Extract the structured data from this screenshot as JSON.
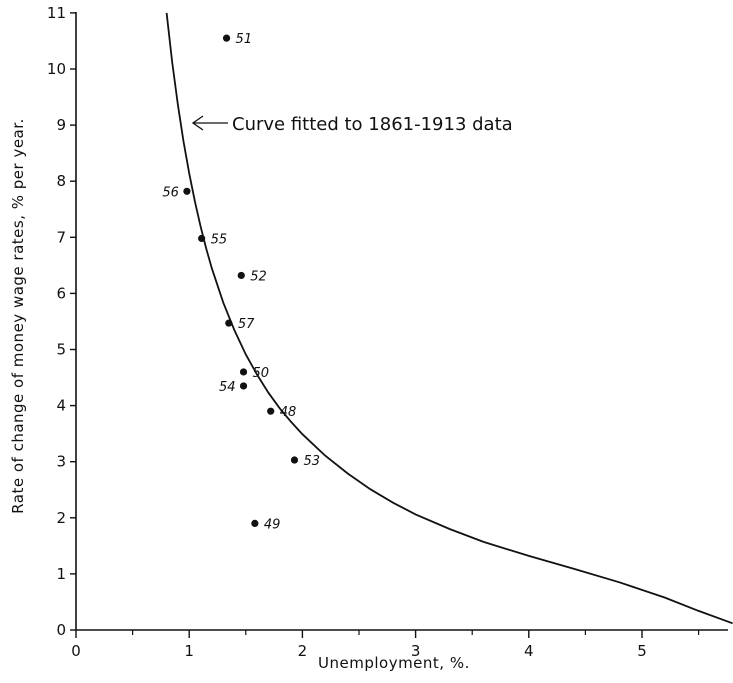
{
  "chart_data": {
    "type": "scatter",
    "xlabel": "Unemployment,  %.",
    "ylabel": "Rate of change of money wage rates, % per year.",
    "xlim": [
      0,
      5.8
    ],
    "ylim": [
      0,
      11
    ],
    "x_ticks": [
      "0",
      "1",
      "2",
      "3",
      "4",
      "5"
    ],
    "y_ticks": [
      "0",
      "1",
      "2",
      "3",
      "4",
      "5",
      "6",
      "7",
      "8",
      "9",
      "10",
      "11"
    ],
    "grid": false,
    "points": [
      {
        "label": "48",
        "x": 1.72,
        "y": 3.9
      },
      {
        "label": "49",
        "x": 1.58,
        "y": 1.9
      },
      {
        "label": "50",
        "x": 1.48,
        "y": 4.6
      },
      {
        "label": "51",
        "x": 1.33,
        "y": 10.55
      },
      {
        "label": "52",
        "x": 1.46,
        "y": 6.32
      },
      {
        "label": "53",
        "x": 1.93,
        "y": 3.03
      },
      {
        "label": "54",
        "x": 1.48,
        "y": 4.35
      },
      {
        "label": "55",
        "x": 1.11,
        "y": 6.98
      },
      {
        "label": "56",
        "x": 0.98,
        "y": 7.82
      },
      {
        "label": "57",
        "x": 1.35,
        "y": 5.47
      }
    ],
    "curve": {
      "x": [
        0.8,
        0.85,
        0.9,
        0.95,
        1.0,
        1.05,
        1.1,
        1.15,
        1.2,
        1.3,
        1.4,
        1.5,
        1.6,
        1.7,
        1.8,
        1.9,
        2.0,
        2.2,
        2.4,
        2.6,
        2.8,
        3.0,
        3.3,
        3.6,
        4.0,
        4.4,
        4.8,
        5.2,
        5.5,
        5.8
      ],
      "y": [
        11.0,
        10.12,
        9.36,
        8.71,
        8.14,
        7.64,
        7.2,
        6.8,
        6.45,
        5.84,
        5.34,
        4.91,
        4.55,
        4.23,
        3.95,
        3.71,
        3.49,
        3.11,
        2.79,
        2.51,
        2.27,
        2.06,
        1.8,
        1.57,
        1.32,
        1.09,
        0.85,
        0.58,
        0.34,
        0.12
      ]
    },
    "annotation": {
      "text": "Curve fitted to 1861-1913 data",
      "at": {
        "x": 1.0,
        "y": 9.1
      }
    }
  }
}
